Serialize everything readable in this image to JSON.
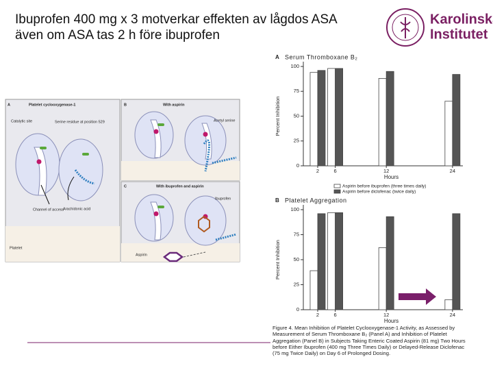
{
  "slide": {
    "title_lines": [
      "Ibuprofen 400 mg x 3 motverkar effekten av lågdos ASA",
      "även om ASA tas 2 h före ibuprofen"
    ],
    "logo": [
      "Karolinska",
      "Institutet"
    ]
  },
  "diagram": {
    "panels": [
      {
        "letter": "A",
        "title": "Platelet cyclooxygenase-1",
        "labels": [
          "Catalytic site",
          "Serine residue at position 529",
          "Channel of access",
          "Arachidonic acid",
          "Platelet"
        ]
      },
      {
        "letter": "B",
        "title": "With aspirin",
        "labels": [
          "Acetyl serine"
        ]
      },
      {
        "letter": "C",
        "title": "With ibuprofen and aspirin",
        "labels": [
          "Ibuprofen",
          "Aspirin"
        ]
      }
    ]
  },
  "caption": "Figure 4. Mean Inhibition of Platelet Cyclooxygenase-1 Activity, as Assessed by Measurement of Serum Thromboxane B₂ (Panel A) and Inhibition of Platelet Aggregation (Panel B) in Subjects Taking Enteric Coated Aspirin (81 mg) Two Hours before Either Ibuprofen (400 mg Three Times Daily) or Delayed-Release Diclofenac (75 mg Twice Daily) on Day 6 of Prolonged Dosing.",
  "chart_data": [
    {
      "type": "bar",
      "panel": "A",
      "title": "Serum Thromboxane B₂",
      "ylabel": "Percent Inhibition",
      "xlabel": "Hours",
      "categories": [
        "2",
        "6",
        "12",
        "24"
      ],
      "ylim": [
        0,
        100
      ],
      "yticks": [
        0,
        25,
        50,
        75,
        100
      ],
      "series": [
        {
          "name": "Aspirin before ibuprofen (three times daily)",
          "color": "#ffffff",
          "values": [
            94,
            98,
            88,
            65
          ]
        },
        {
          "name": "Aspirin before diclofenac (twice daily)",
          "color": "#555555",
          "values": [
            96,
            98,
            95,
            92
          ]
        }
      ]
    },
    {
      "type": "bar",
      "panel": "B",
      "title": "Platelet Aggregation",
      "ylabel": "Percent Inhibition",
      "xlabel": "Hours",
      "categories": [
        "2",
        "6",
        "12",
        "24"
      ],
      "ylim": [
        0,
        100
      ],
      "yticks": [
        0,
        25,
        50,
        75,
        100
      ],
      "series": [
        {
          "color": "#ffffff",
          "values": [
            39,
            97,
            62,
            10
          ]
        },
        {
          "color": "#555555",
          "values": [
            96,
            97,
            93,
            96
          ]
        }
      ]
    }
  ]
}
